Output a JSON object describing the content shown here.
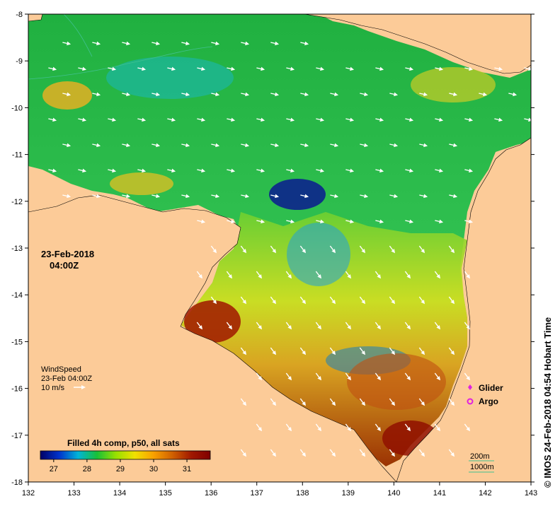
{
  "timestamp": {
    "date": "23-Feb-2018",
    "time": "04:00Z"
  },
  "wind_legend": {
    "title": "WindSpeed",
    "time": "23-Feb 04:00Z",
    "scale": "10 m/s"
  },
  "colorbar": {
    "title": "Filled 4h comp, p50, all sats",
    "ticks": [
      "27",
      "28",
      "29",
      "30",
      "31"
    ],
    "range": [
      26.6,
      31.7
    ],
    "colors": [
      "#000066",
      "#0033cc",
      "#00b4d8",
      "#18c038",
      "#98e000",
      "#f0e000",
      "#f8a000",
      "#d06000",
      "#a01800",
      "#800000"
    ]
  },
  "markers": {
    "glider": "Glider",
    "argo": "Argo"
  },
  "contours": {
    "shallow": "200m",
    "deep": "1000m"
  },
  "axes": {
    "lon_ticks": [
      "132",
      "133",
      "134",
      "135",
      "136",
      "137",
      "138",
      "139",
      "140",
      "141",
      "142",
      "143"
    ],
    "lat_ticks": [
      "-8",
      "-9",
      "-10",
      "-11",
      "-12",
      "-13",
      "-14",
      "-15",
      "-16",
      "-17",
      "-18"
    ],
    "lon_range": [
      132,
      143
    ],
    "lat_range": [
      -18,
      -8
    ]
  },
  "credit": "© IMOS 24-Feb-2018 04:54 Hobart Time",
  "colors": {
    "land": "#fccb98",
    "contour": "#40c090",
    "glider": "#e020e0",
    "argo": "#e020e0"
  }
}
